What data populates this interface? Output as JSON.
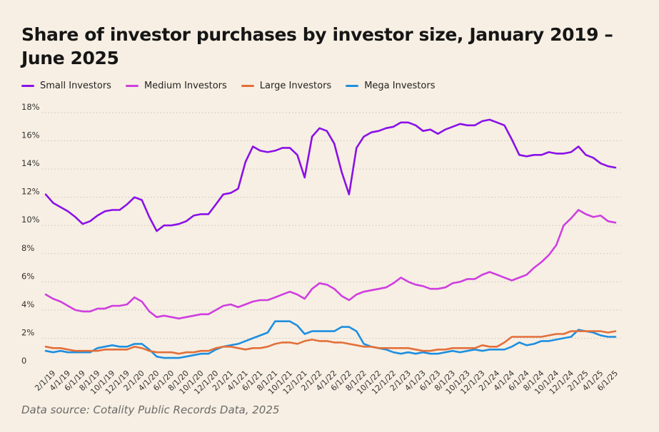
{
  "title": "Share of investor purchases by investor size, January 2019 – June 2025",
  "source": "Data source: Cotality Public Records Data, 2025",
  "chart_data": {
    "type": "line",
    "title": "Share of investor purchases by investor size, January 2019 – June 2025",
    "xlabel": "",
    "ylabel": "",
    "ylim": [
      0,
      18
    ],
    "yticks": [
      "0",
      "2%",
      "4%",
      "6%",
      "8%",
      "10%",
      "12%",
      "14%",
      "16%",
      "18%"
    ],
    "grid": "horizontal dotted",
    "legend_position": "top-left",
    "x_tick_labels": [
      "2/1/19",
      "4/1/19",
      "6/1/19",
      "8/1/19",
      "10/1/19",
      "12/1/19",
      "2/1/20",
      "4/1/20",
      "6/1/20",
      "8/1/20",
      "10/1/20",
      "12/1/20",
      "2/1/21",
      "4/1/21",
      "6/1/21",
      "8/1/21",
      "10/1/21",
      "12/1/21",
      "2/1/22",
      "4/1/22",
      "6/1/22",
      "8/1/22",
      "10/1/22",
      "12/1/22",
      "2/1/23",
      "4/1/23",
      "6/1/23",
      "8/1/23",
      "10/1/23",
      "12/1/23",
      "2/1/24",
      "4/1/24",
      "6/1/24",
      "8/1/24",
      "10/1/24",
      "12/1/24",
      "2/1/25",
      "4/1/25",
      "6/1/25"
    ],
    "x_start": "2019-01",
    "x_end": "2025-06",
    "series": [
      {
        "name": "Small Investors",
        "color": "#8a10e8",
        "values": [
          12.2,
          11.6,
          11.3,
          11.0,
          10.6,
          10.1,
          10.3,
          10.7,
          11.0,
          11.1,
          11.1,
          11.5,
          12.0,
          11.8,
          10.6,
          9.6,
          10.0,
          10.0,
          10.1,
          10.3,
          10.7,
          10.8,
          10.8,
          11.5,
          12.2,
          12.3,
          12.6,
          14.5,
          15.6,
          15.3,
          15.2,
          15.3,
          15.5,
          15.5,
          15.0,
          13.4,
          16.3,
          16.9,
          16.7,
          15.8,
          13.8,
          12.2,
          15.5,
          16.3,
          16.6,
          16.7,
          16.9,
          17.0,
          17.3,
          17.3,
          17.1,
          16.7,
          16.8,
          16.5,
          16.8,
          17.0,
          17.2,
          17.1,
          17.1,
          17.4,
          17.5,
          17.3,
          17.1,
          16.1,
          15.0,
          14.9,
          15.0,
          15.0,
          15.2,
          15.1,
          15.1,
          15.2,
          15.6,
          15.0,
          14.8,
          14.4,
          14.2,
          14.1
        ]
      },
      {
        "name": "Medium Investors",
        "color": "#cf3ee0",
        "values": [
          5.1,
          4.8,
          4.6,
          4.3,
          4.0,
          3.9,
          3.9,
          4.1,
          4.1,
          4.3,
          4.3,
          4.4,
          4.9,
          4.6,
          3.9,
          3.5,
          3.6,
          3.5,
          3.4,
          3.5,
          3.6,
          3.7,
          3.7,
          4.0,
          4.3,
          4.4,
          4.2,
          4.4,
          4.6,
          4.7,
          4.7,
          4.9,
          5.1,
          5.3,
          5.1,
          4.8,
          5.5,
          5.9,
          5.8,
          5.5,
          5.0,
          4.7,
          5.1,
          5.3,
          5.4,
          5.5,
          5.6,
          5.9,
          6.3,
          6.0,
          5.8,
          5.7,
          5.5,
          5.5,
          5.6,
          5.9,
          6.0,
          6.2,
          6.2,
          6.5,
          6.7,
          6.5,
          6.3,
          6.1,
          6.3,
          6.5,
          7.0,
          7.4,
          7.9,
          8.6,
          10.0,
          10.5,
          11.1,
          10.8,
          10.6,
          10.7,
          10.3,
          10.2
        ]
      },
      {
        "name": "Large Investors",
        "color": "#e36f3a",
        "values": [
          1.4,
          1.3,
          1.3,
          1.2,
          1.1,
          1.1,
          1.1,
          1.1,
          1.2,
          1.2,
          1.2,
          1.2,
          1.4,
          1.3,
          1.1,
          1.0,
          1.0,
          1.0,
          0.9,
          1.0,
          1.0,
          1.1,
          1.1,
          1.3,
          1.4,
          1.4,
          1.3,
          1.2,
          1.3,
          1.3,
          1.4,
          1.6,
          1.7,
          1.7,
          1.6,
          1.8,
          1.9,
          1.8,
          1.8,
          1.7,
          1.7,
          1.6,
          1.5,
          1.4,
          1.4,
          1.3,
          1.3,
          1.3,
          1.3,
          1.3,
          1.2,
          1.1,
          1.1,
          1.2,
          1.2,
          1.3,
          1.3,
          1.3,
          1.3,
          1.5,
          1.4,
          1.4,
          1.7,
          2.1,
          2.1,
          2.1,
          2.1,
          2.1,
          2.2,
          2.3,
          2.3,
          2.5,
          2.5,
          2.5,
          2.5,
          2.5,
          2.4,
          2.5
        ]
      },
      {
        "name": "Mega Investors",
        "color": "#1e8fe0",
        "values": [
          1.1,
          1.0,
          1.1,
          1.0,
          1.0,
          1.0,
          1.0,
          1.3,
          1.4,
          1.5,
          1.4,
          1.4,
          1.6,
          1.6,
          1.2,
          0.7,
          0.6,
          0.6,
          0.6,
          0.7,
          0.8,
          0.9,
          0.9,
          1.2,
          1.4,
          1.5,
          1.6,
          1.8,
          2.0,
          2.2,
          2.4,
          3.2,
          3.2,
          3.2,
          2.9,
          2.3,
          2.5,
          2.5,
          2.5,
          2.5,
          2.8,
          2.8,
          2.5,
          1.6,
          1.4,
          1.3,
          1.2,
          1.0,
          0.9,
          1.0,
          0.9,
          1.0,
          0.9,
          0.9,
          1.0,
          1.1,
          1.0,
          1.1,
          1.2,
          1.1,
          1.2,
          1.2,
          1.2,
          1.4,
          1.7,
          1.5,
          1.6,
          1.8,
          1.8,
          1.9,
          2.0,
          2.1,
          2.6,
          2.5,
          2.4,
          2.2,
          2.1,
          2.1
        ]
      }
    ]
  }
}
